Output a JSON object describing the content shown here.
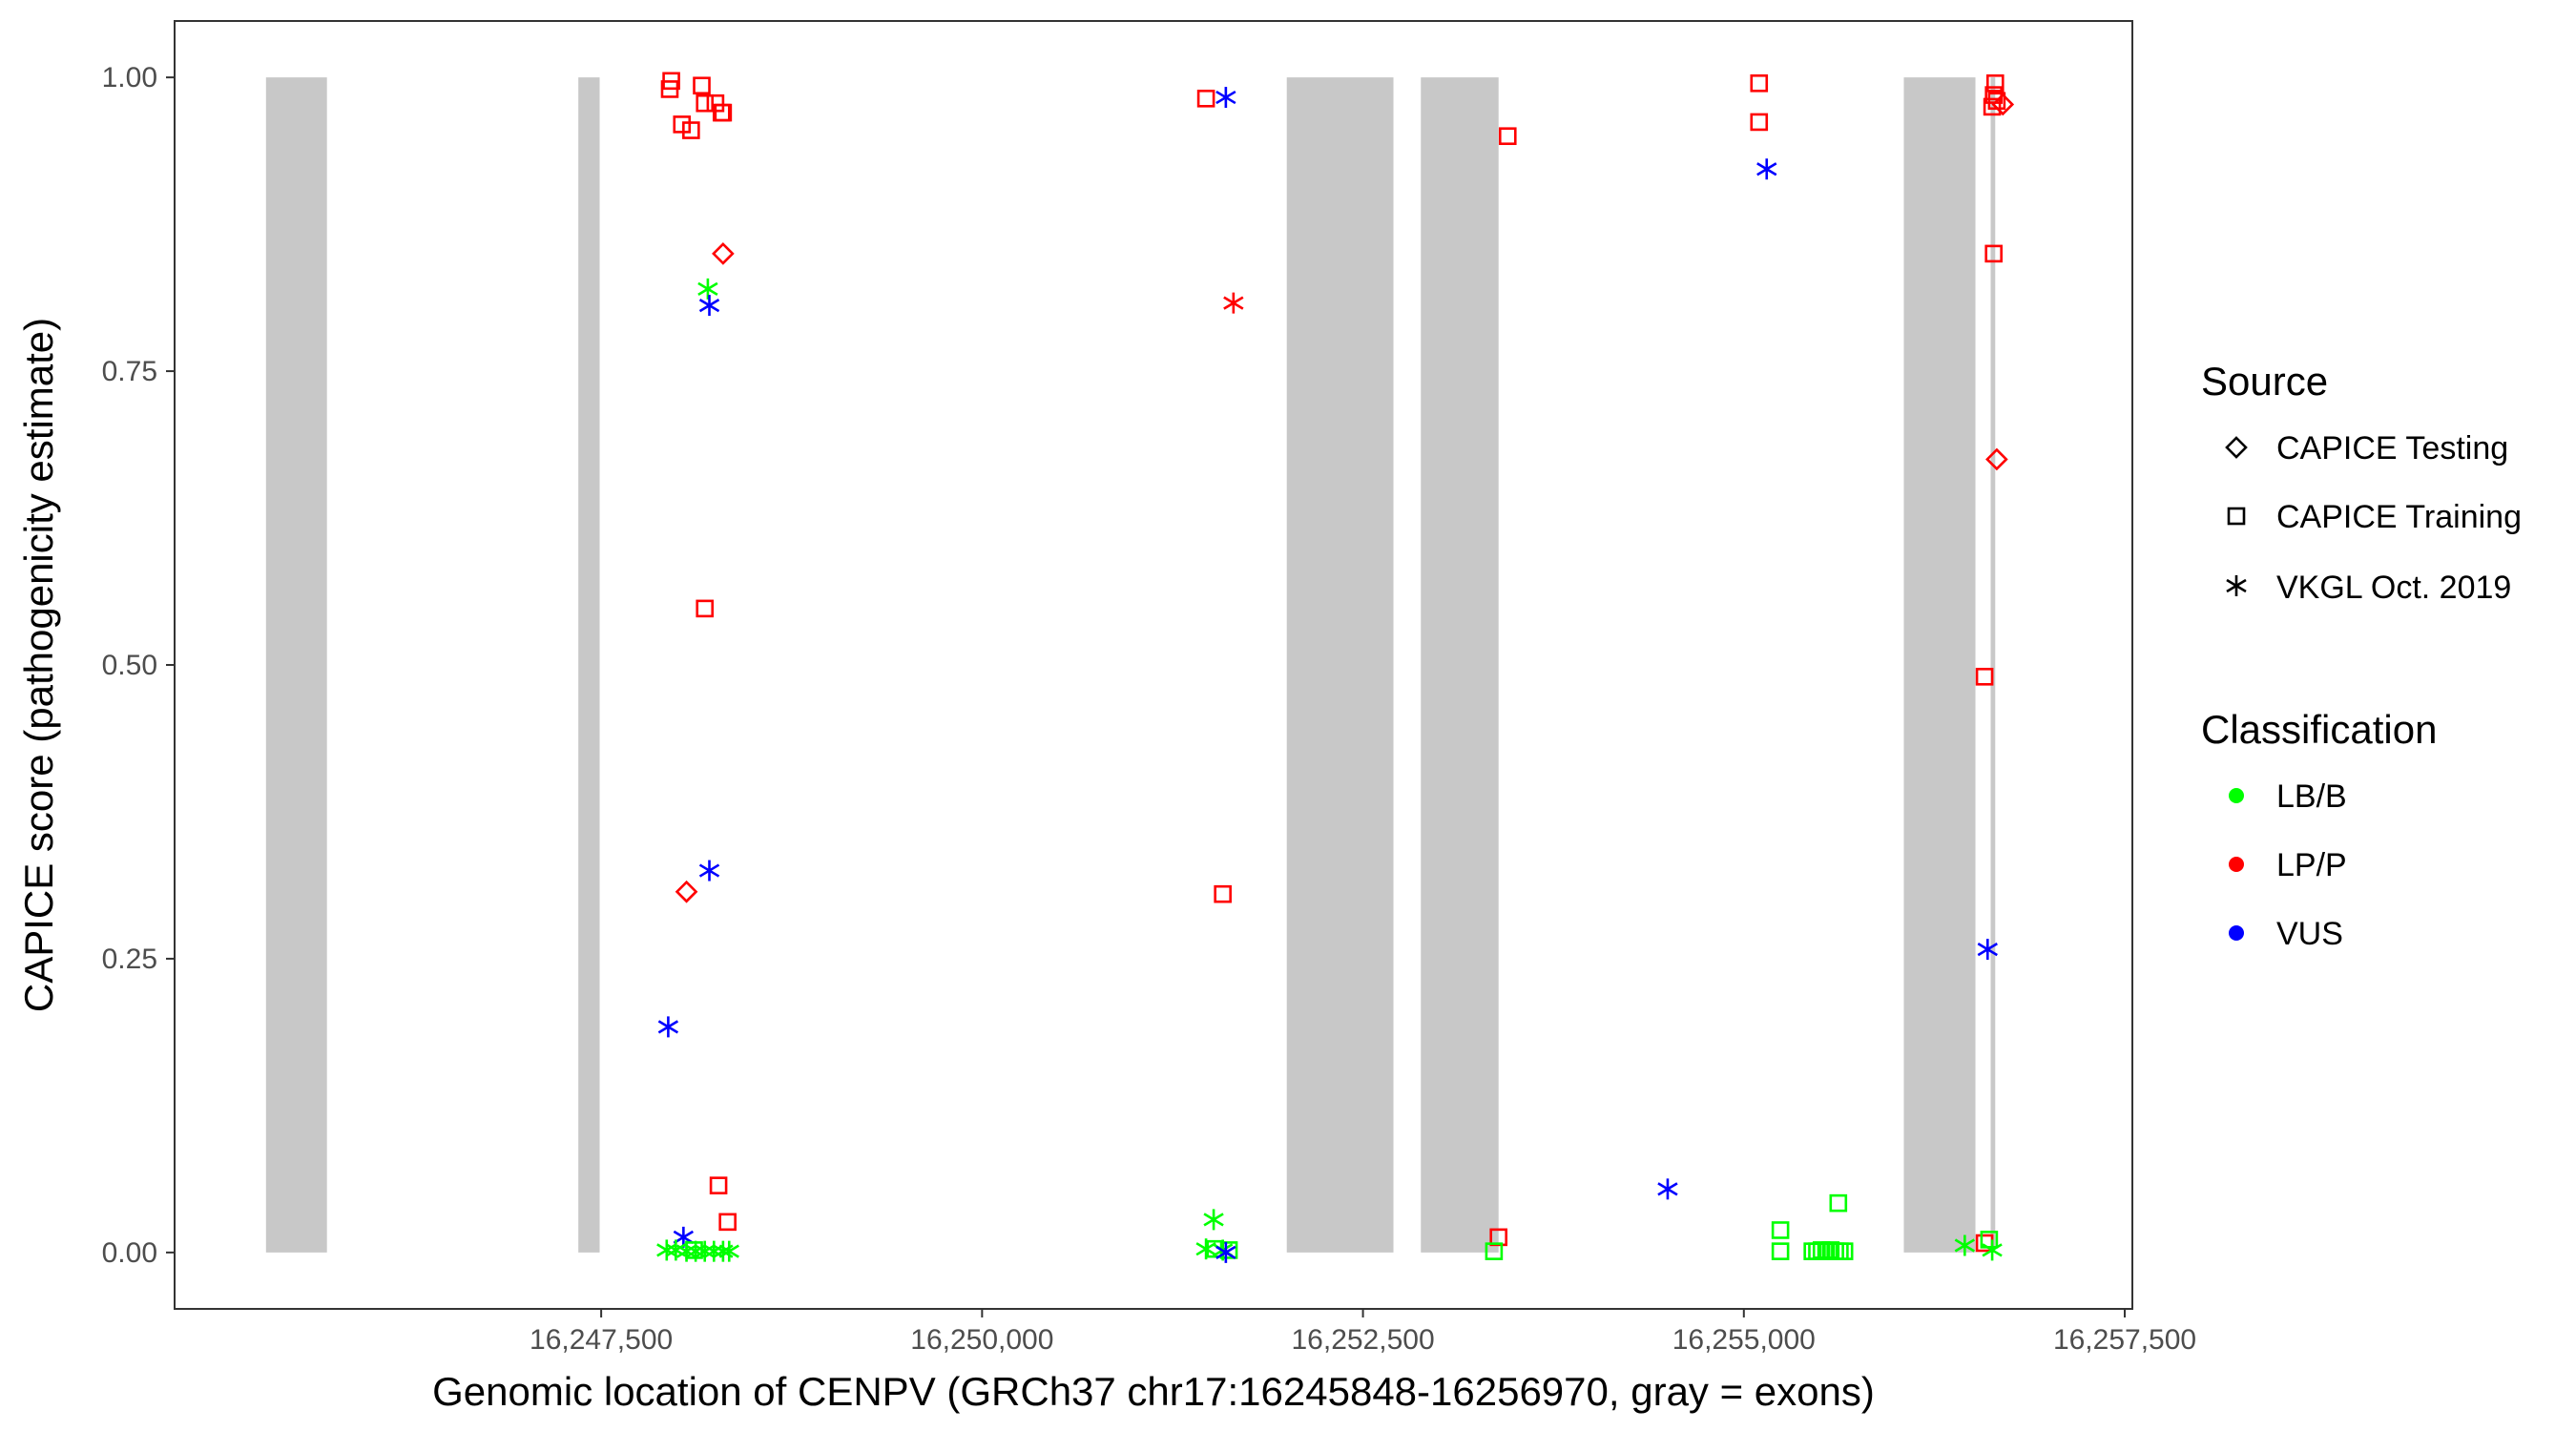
{
  "chart_data": {
    "type": "scatter",
    "xlabel": "Genomic location of CENPV (GRCh37 chr17:16245848-16256970, gray = exons)",
    "ylabel": "CAPICE score (pathogenicity estimate)",
    "xlim": [
      16244700,
      16257550
    ],
    "ylim": [
      -0.048,
      1.048
    ],
    "x_ticks": [
      16247500,
      16250000,
      16252500,
      16255000,
      16257500
    ],
    "x_tick_labels": [
      "16,247,500",
      "16,250,000",
      "16,252,500",
      "16,255,000",
      "16,257,500"
    ],
    "y_ticks": [
      0,
      0.25,
      0.5,
      0.75,
      1
    ],
    "y_tick_labels": [
      "0.00",
      "0.25",
      "0.50",
      "0.75",
      "1.00"
    ],
    "grid": false,
    "exons": [
      [
        16245300,
        16245700
      ],
      [
        16247350,
        16247490
      ],
      [
        16252000,
        16252700
      ],
      [
        16252880,
        16253390
      ],
      [
        16256050,
        16256520
      ],
      [
        16256620,
        16256650
      ]
    ],
    "exon_color": "#c8c8c8",
    "legend": {
      "placement": "right",
      "source_title": "Source",
      "source_entries": [
        {
          "label": "CAPICE Testing",
          "shape": "diamond"
        },
        {
          "label": "CAPICE Training",
          "shape": "square"
        },
        {
          "label": "VKGL Oct. 2019",
          "shape": "asterisk"
        }
      ],
      "class_title": "Classification",
      "class_entries": [
        {
          "label": "LB/B",
          "color": "#00ff00"
        },
        {
          "label": "LP/P",
          "color": "#ff0000"
        },
        {
          "label": "VUS",
          "color": "#0000ff"
        }
      ]
    },
    "points": [
      {
        "x": 16247950,
        "y": 0.99,
        "source": "CAPICE Training",
        "cls": "LP/P"
      },
      {
        "x": 16247960,
        "y": 0.997,
        "source": "CAPICE Training",
        "cls": "LP/P"
      },
      {
        "x": 16248030,
        "y": 0.96,
        "source": "CAPICE Training",
        "cls": "LP/P"
      },
      {
        "x": 16248090,
        "y": 0.955,
        "source": "CAPICE Training",
        "cls": "LP/P"
      },
      {
        "x": 16248160,
        "y": 0.993,
        "source": "CAPICE Training",
        "cls": "LP/P"
      },
      {
        "x": 16248180,
        "y": 0.978,
        "source": "CAPICE Training",
        "cls": "LP/P"
      },
      {
        "x": 16248250,
        "y": 0.978,
        "source": "CAPICE Training",
        "cls": "LP/P"
      },
      {
        "x": 16248290,
        "y": 0.97,
        "source": "CAPICE Training",
        "cls": "LP/P"
      },
      {
        "x": 16248300,
        "y": 0.97,
        "source": "CAPICE Training",
        "cls": "LP/P"
      },
      {
        "x": 16248300,
        "y": 0.85,
        "source": "CAPICE Testing",
        "cls": "LP/P"
      },
      {
        "x": 16248200,
        "y": 0.82,
        "source": "VKGL Oct. 2019",
        "cls": "LB/B"
      },
      {
        "x": 16248210,
        "y": 0.806,
        "source": "VKGL Oct. 2019",
        "cls": "VUS"
      },
      {
        "x": 16248180,
        "y": 0.548,
        "source": "CAPICE Training",
        "cls": "LP/P"
      },
      {
        "x": 16248210,
        "y": 0.325,
        "source": "VKGL Oct. 2019",
        "cls": "VUS"
      },
      {
        "x": 16248060,
        "y": 0.307,
        "source": "CAPICE Testing",
        "cls": "LP/P"
      },
      {
        "x": 16247940,
        "y": 0.192,
        "source": "VKGL Oct. 2019",
        "cls": "VUS"
      },
      {
        "x": 16248270,
        "y": 0.057,
        "source": "CAPICE Training",
        "cls": "LP/P"
      },
      {
        "x": 16248330,
        "y": 0.026,
        "source": "CAPICE Training",
        "cls": "LP/P"
      },
      {
        "x": 16248040,
        "y": 0.013,
        "source": "VKGL Oct. 2019",
        "cls": "VUS"
      },
      {
        "x": 16247930,
        "y": 0.002,
        "source": "VKGL Oct. 2019",
        "cls": "LB/B"
      },
      {
        "x": 16247990,
        "y": 0.002,
        "source": "VKGL Oct. 2019",
        "cls": "LB/B"
      },
      {
        "x": 16248060,
        "y": 0.001,
        "source": "VKGL Oct. 2019",
        "cls": "LB/B"
      },
      {
        "x": 16248120,
        "y": 0.001,
        "source": "VKGL Oct. 2019",
        "cls": "LB/B"
      },
      {
        "x": 16248180,
        "y": 0.001,
        "source": "VKGL Oct. 2019",
        "cls": "LB/B"
      },
      {
        "x": 16248240,
        "y": 0.001,
        "source": "VKGL Oct. 2019",
        "cls": "LB/B"
      },
      {
        "x": 16248300,
        "y": 0.001,
        "source": "VKGL Oct. 2019",
        "cls": "LB/B"
      },
      {
        "x": 16248340,
        "y": 0.001,
        "source": "VKGL Oct. 2019",
        "cls": "LB/B"
      },
      {
        "x": 16248110,
        "y": 0.002,
        "source": "CAPICE Training",
        "cls": "LB/B"
      },
      {
        "x": 16251470,
        "y": 0.982,
        "source": "CAPICE Training",
        "cls": "LP/P"
      },
      {
        "x": 16251600,
        "y": 0.983,
        "source": "VKGL Oct. 2019",
        "cls": "VUS"
      },
      {
        "x": 16251650,
        "y": 0.808,
        "source": "VKGL Oct. 2019",
        "cls": "LP/P"
      },
      {
        "x": 16251580,
        "y": 0.305,
        "source": "CAPICE Training",
        "cls": "LP/P"
      },
      {
        "x": 16251520,
        "y": 0.028,
        "source": "VKGL Oct. 2019",
        "cls": "LB/B"
      },
      {
        "x": 16251470,
        "y": 0.003,
        "source": "VKGL Oct. 2019",
        "cls": "LB/B"
      },
      {
        "x": 16251530,
        "y": 0.003,
        "source": "CAPICE Training",
        "cls": "LB/B"
      },
      {
        "x": 16251580,
        "y": 0.002,
        "source": "VKGL Oct. 2019",
        "cls": "LB/B"
      },
      {
        "x": 16251620,
        "y": 0.002,
        "source": "CAPICE Training",
        "cls": "LB/B"
      },
      {
        "x": 16251600,
        "y": 0.0,
        "source": "VKGL Oct. 2019",
        "cls": "VUS"
      },
      {
        "x": 16253450,
        "y": 0.95,
        "source": "CAPICE Training",
        "cls": "LP/P"
      },
      {
        "x": 16253390,
        "y": 0.013,
        "source": "CAPICE Training",
        "cls": "LP/P"
      },
      {
        "x": 16253360,
        "y": 0.001,
        "source": "CAPICE Training",
        "cls": "LB/B"
      },
      {
        "x": 16254500,
        "y": 0.054,
        "source": "VKGL Oct. 2019",
        "cls": "VUS"
      },
      {
        "x": 16255100,
        "y": 0.995,
        "source": "CAPICE Training",
        "cls": "LP/P"
      },
      {
        "x": 16255100,
        "y": 0.962,
        "source": "CAPICE Training",
        "cls": "LP/P"
      },
      {
        "x": 16255150,
        "y": 0.922,
        "source": "VKGL Oct. 2019",
        "cls": "VUS"
      },
      {
        "x": 16255240,
        "y": 0.019,
        "source": "CAPICE Training",
        "cls": "LB/B"
      },
      {
        "x": 16255240,
        "y": 0.001,
        "source": "CAPICE Training",
        "cls": "LB/B"
      },
      {
        "x": 16255620,
        "y": 0.042,
        "source": "CAPICE Training",
        "cls": "LB/B"
      },
      {
        "x": 16255450,
        "y": 0.001,
        "source": "CAPICE Training",
        "cls": "LB/B"
      },
      {
        "x": 16255480,
        "y": 0.001,
        "source": "CAPICE Training",
        "cls": "LB/B"
      },
      {
        "x": 16255510,
        "y": 0.002,
        "source": "CAPICE Training",
        "cls": "LB/B"
      },
      {
        "x": 16255540,
        "y": 0.001,
        "source": "CAPICE Training",
        "cls": "LB/B"
      },
      {
        "x": 16255570,
        "y": 0.002,
        "source": "CAPICE Training",
        "cls": "LB/B"
      },
      {
        "x": 16255600,
        "y": 0.001,
        "source": "CAPICE Training",
        "cls": "LB/B"
      },
      {
        "x": 16255630,
        "y": 0.001,
        "source": "CAPICE Training",
        "cls": "LB/B"
      },
      {
        "x": 16255660,
        "y": 0.001,
        "source": "CAPICE Training",
        "cls": "LB/B"
      },
      {
        "x": 16256450,
        "y": 0.006,
        "source": "VKGL Oct. 2019",
        "cls": "LB/B"
      },
      {
        "x": 16256580,
        "y": 0.49,
        "source": "CAPICE Training",
        "cls": "LP/P"
      },
      {
        "x": 16256600,
        "y": 0.258,
        "source": "VKGL Oct. 2019",
        "cls": "VUS"
      },
      {
        "x": 16256580,
        "y": 0.008,
        "source": "CAPICE Training",
        "cls": "LP/P"
      },
      {
        "x": 16256610,
        "y": 0.011,
        "source": "CAPICE Training",
        "cls": "LB/B"
      },
      {
        "x": 16256630,
        "y": 0.002,
        "source": "VKGL Oct. 2019",
        "cls": "LB/B"
      },
      {
        "x": 16256650,
        "y": 0.995,
        "source": "CAPICE Training",
        "cls": "LP/P"
      },
      {
        "x": 16256640,
        "y": 0.985,
        "source": "CAPICE Training",
        "cls": "LP/P"
      },
      {
        "x": 16256660,
        "y": 0.98,
        "source": "CAPICE Training",
        "cls": "LP/P"
      },
      {
        "x": 16256630,
        "y": 0.975,
        "source": "CAPICE Training",
        "cls": "LP/P"
      },
      {
        "x": 16256700,
        "y": 0.977,
        "source": "CAPICE Testing",
        "cls": "LP/P"
      },
      {
        "x": 16256640,
        "y": 0.85,
        "source": "CAPICE Training",
        "cls": "LP/P"
      },
      {
        "x": 16256660,
        "y": 0.675,
        "source": "CAPICE Testing",
        "cls": "LP/P"
      }
    ]
  }
}
